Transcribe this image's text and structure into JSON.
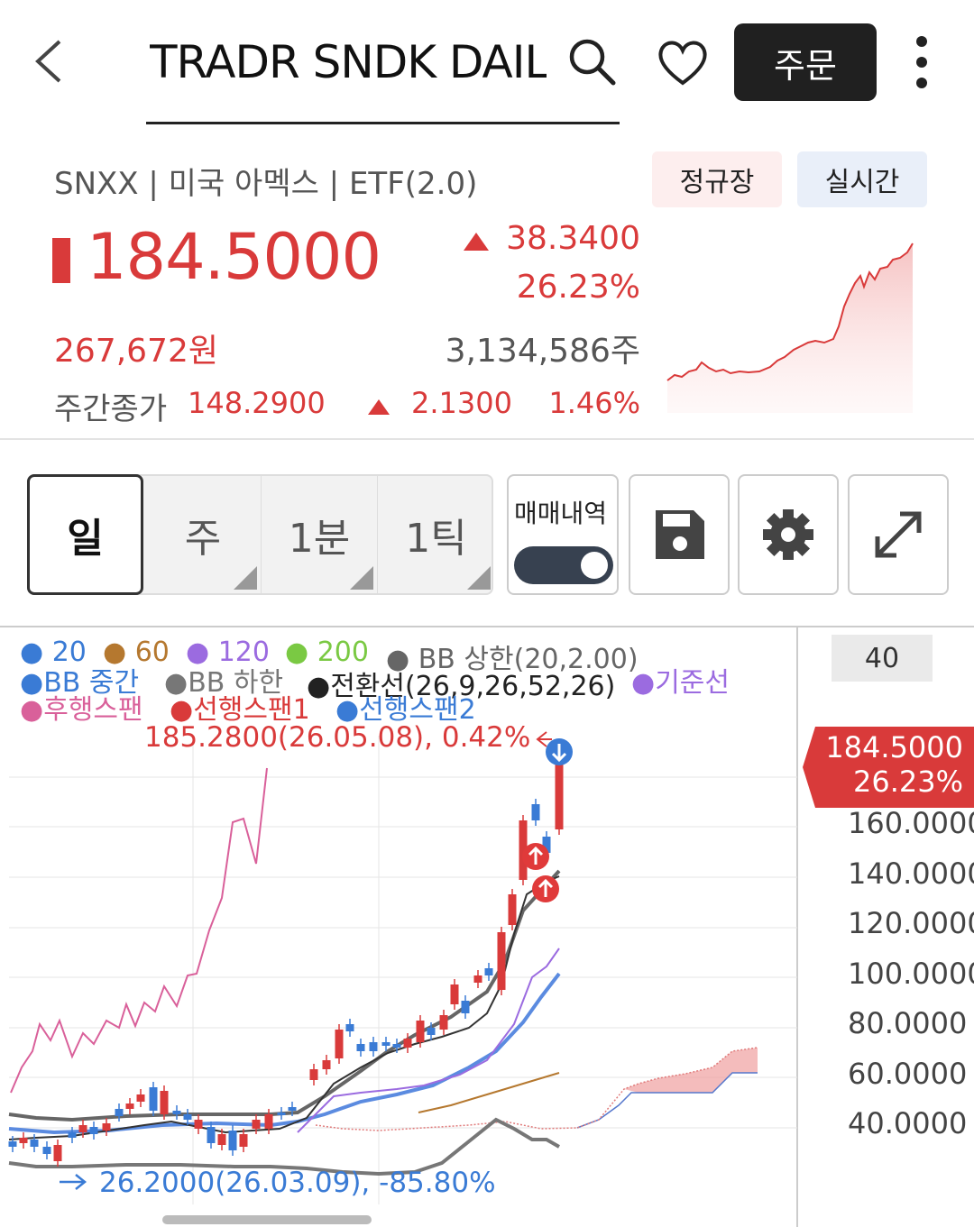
{
  "header": {
    "title": "TRADR SNDK DAIL",
    "order_label": "주문"
  },
  "info": {
    "meta": "SNXX | 미국 아멕스 | ETF(2.0)",
    "badge_regular": "정규장",
    "badge_realtime": "실시간",
    "price": "184.5000",
    "change_value": "38.3400",
    "change_pct": "26.23%",
    "krw": "267,672원",
    "volume": "3,134,586주",
    "weekly_label": "주간종가",
    "weekly_price": "148.2900",
    "weekly_change": "2.1300",
    "weekly_pct": "1.46%"
  },
  "toolbar": {
    "tabs": [
      {
        "label": "일",
        "active": true
      },
      {
        "label": "주"
      },
      {
        "label": "1분"
      },
      {
        "label": "1틱"
      }
    ],
    "trade_history_label": "매매내역",
    "trade_history_on": true
  },
  "chart": {
    "period": "40",
    "current_price": "184.5000",
    "current_pct": "26.23%",
    "y_ticks": [
      "160.0000",
      "140.0000",
      "120.0000",
      "100.0000",
      "80.0000",
      "60.0000",
      "40.0000"
    ],
    "legend": {
      "ma20": "20",
      "ma60": "60",
      "ma120": "120",
      "ma200": "200",
      "bb_upper": "BB 상한(20,2.00)",
      "bb_mid": "BB 중간",
      "bb_lower": "BB 하한",
      "conversion": "전환선(26,9,26,52,26)",
      "base": "기준선",
      "lagging": "후행스팬",
      "lead1": "선행스팬1",
      "lead2": "선행스팬2"
    },
    "high_annotation": "185.2800(26.05.08), 0.42%",
    "low_annotation": "26.2000(26.03.09), -85.80%"
  },
  "colors": {
    "up": "#d93a3a",
    "down": "#3a7bd5",
    "ma20": "#3a7bd5",
    "ma60": "#b5782f",
    "ma120": "#9b6be0",
    "ma200": "#7ac943",
    "lagging": "#d9609a"
  }
}
